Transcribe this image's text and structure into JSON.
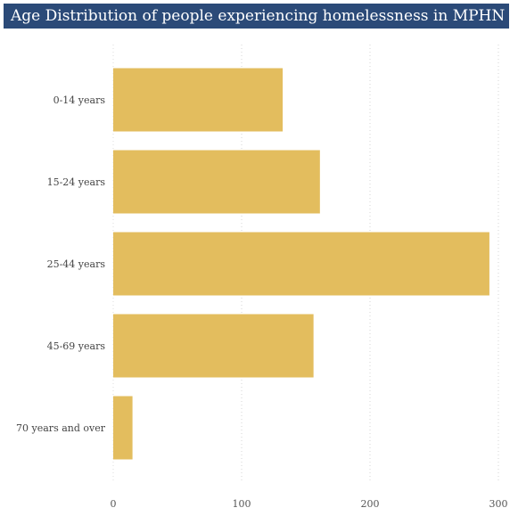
{
  "chart_data": {
    "type": "bar",
    "orientation": "horizontal",
    "title": "Age Distribution of people experiencing homelessness in MPHN",
    "categories": [
      "0-14 years",
      "15-24 years",
      "25-44 years",
      "45-69 years",
      "70 years and over"
    ],
    "values": [
      132,
      161,
      293,
      156,
      15
    ],
    "xlabel": "",
    "ylabel": "",
    "xlim": [
      0,
      300
    ],
    "xticks": [
      0,
      100,
      200,
      300
    ],
    "grid": "vertical dotted",
    "legend": "none",
    "bar_color": "#e3bd5e",
    "title_background": "#2b4a78"
  }
}
